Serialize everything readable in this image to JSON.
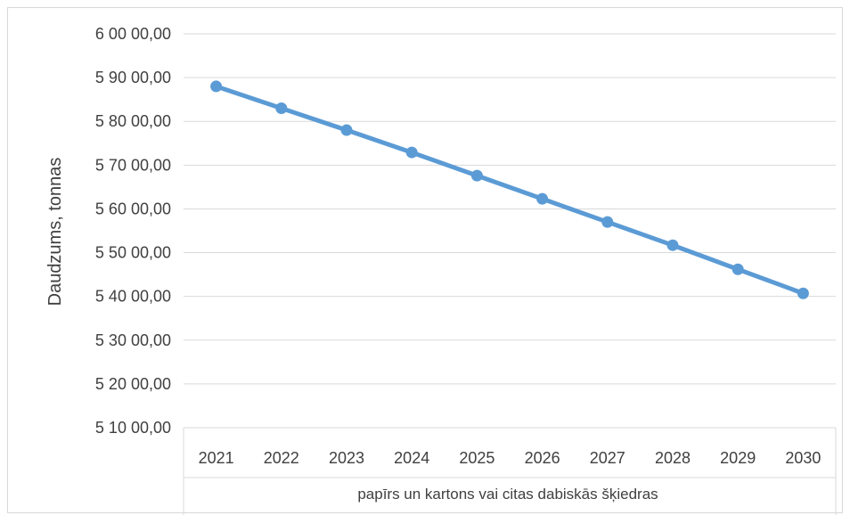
{
  "chart_data": {
    "type": "line",
    "title": "",
    "ylabel": "Daudzums, tonnas",
    "xlabel": "",
    "x_group_label": "papīrs un kartons vai citas dabiskās šķiedras",
    "categories": [
      "2021",
      "2022",
      "2023",
      "2024",
      "2025",
      "2026",
      "2027",
      "2028",
      "2029",
      "2030"
    ],
    "series": [
      {
        "values": [
          58800,
          58300,
          57800,
          57290,
          56760,
          56230,
          55700,
          55170,
          54620,
          54070
        ],
        "color": "#5b9bd5"
      }
    ],
    "ylim": [
      51000,
      60000
    ],
    "yticks": [
      51000,
      52000,
      53000,
      54000,
      55000,
      56000,
      57000,
      58000,
      59000,
      60000
    ],
    "ytick_labels": [
      "5 10 00,00",
      "5 20 00,00",
      "5 30 00,00",
      "5 40 00,00",
      "5 50 00,00",
      "5 60 00,00",
      "5 70 00,00",
      "5 80 00,00",
      "5 90 00,00",
      "6 00 00,00"
    ],
    "grid": true,
    "legend": "none"
  }
}
